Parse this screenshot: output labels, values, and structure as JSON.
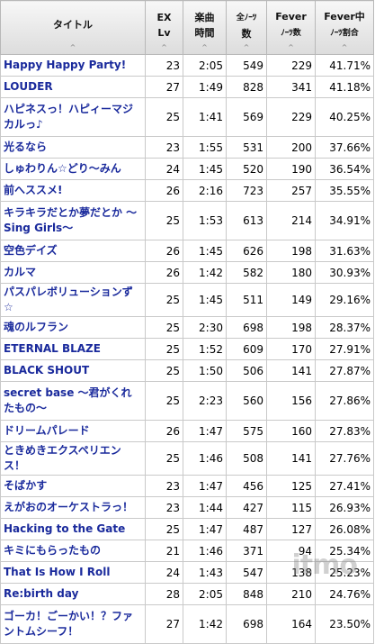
{
  "headers": {
    "title": "タイトル",
    "lv_1": "EX",
    "lv_2": "Lv",
    "time_1": "楽曲",
    "time_2": "時間",
    "notes_1": "全ﾉｰﾂ",
    "notes_2": "数",
    "fever_1": "Fever",
    "fever_2": "ﾉｰﾂ数",
    "rate_1": "Fever中",
    "rate_2": "ﾉｰﾂ割合",
    "sort_icon": "^"
  },
  "rows": [
    {
      "title": "Happy Happy Party!",
      "lv": "23",
      "time": "2:05",
      "notes": "549",
      "fever": "229",
      "rate": "41.71%"
    },
    {
      "title": "LOUDER",
      "lv": "27",
      "time": "1:49",
      "notes": "828",
      "fever": "341",
      "rate": "41.18%"
    },
    {
      "title": "ハピネスっ！ハピィーマジカルっ♪",
      "lv": "25",
      "time": "1:41",
      "notes": "569",
      "fever": "229",
      "rate": "40.25%"
    },
    {
      "title": "光るなら",
      "lv": "23",
      "time": "1:55",
      "notes": "531",
      "fever": "200",
      "rate": "37.66%"
    },
    {
      "title": "しゅわりん☆どり～みん",
      "lv": "24",
      "time": "1:45",
      "notes": "520",
      "fever": "190",
      "rate": "36.54%"
    },
    {
      "title": "前へススメ!",
      "lv": "26",
      "time": "2:16",
      "notes": "723",
      "fever": "257",
      "rate": "35.55%"
    },
    {
      "title": "キラキラだとか夢だとか ～Sing Girls～",
      "lv": "25",
      "time": "1:53",
      "notes": "613",
      "fever": "214",
      "rate": "34.91%"
    },
    {
      "title": "空色デイズ",
      "lv": "26",
      "time": "1:45",
      "notes": "626",
      "fever": "198",
      "rate": "31.63%"
    },
    {
      "title": "カルマ",
      "lv": "26",
      "time": "1:42",
      "notes": "582",
      "fever": "180",
      "rate": "30.93%"
    },
    {
      "title": "パスパレボリューションず☆",
      "lv": "25",
      "time": "1:45",
      "notes": "511",
      "fever": "149",
      "rate": "29.16%"
    },
    {
      "title": "魂のルフラン",
      "lv": "25",
      "time": "2:30",
      "notes": "698",
      "fever": "198",
      "rate": "28.37%"
    },
    {
      "title": "ETERNAL BLAZE",
      "lv": "25",
      "time": "1:52",
      "notes": "609",
      "fever": "170",
      "rate": "27.91%"
    },
    {
      "title": "BLACK SHOUT",
      "lv": "25",
      "time": "1:50",
      "notes": "506",
      "fever": "141",
      "rate": "27.87%"
    },
    {
      "title": "secret base ～君がくれたもの～",
      "lv": "25",
      "time": "2:23",
      "notes": "560",
      "fever": "156",
      "rate": "27.86%"
    },
    {
      "title": "ドリームパレード",
      "lv": "26",
      "time": "1:47",
      "notes": "575",
      "fever": "160",
      "rate": "27.83%"
    },
    {
      "title": "ときめきエクスペリエンス！",
      "lv": "25",
      "time": "1:46",
      "notes": "508",
      "fever": "141",
      "rate": "27.76%"
    },
    {
      "title": "そばかす",
      "lv": "23",
      "time": "1:47",
      "notes": "456",
      "fever": "125",
      "rate": "27.41%"
    },
    {
      "title": "えがおのオーケストラっ！",
      "lv": "23",
      "time": "1:44",
      "notes": "427",
      "fever": "115",
      "rate": "26.93%"
    },
    {
      "title": "Hacking to the Gate",
      "lv": "25",
      "time": "1:47",
      "notes": "487",
      "fever": "127",
      "rate": "26.08%"
    },
    {
      "title": "キミにもらったもの",
      "lv": "21",
      "time": "1:46",
      "notes": "371",
      "fever": "94",
      "rate": "25.34%"
    },
    {
      "title": "That Is How I Roll",
      "lv": "24",
      "time": "1:43",
      "notes": "547",
      "fever": "138",
      "rate": "25.23%"
    },
    {
      "title": "Re:birth day",
      "lv": "28",
      "time": "2:05",
      "notes": "848",
      "fever": "210",
      "rate": "24.76%"
    },
    {
      "title": "ゴーカ！ごーかい！？ファントムシーフ！",
      "lv": "27",
      "time": "1:42",
      "notes": "698",
      "fever": "164",
      "rate": "23.50%"
    }
  ],
  "watermark": "itmo"
}
